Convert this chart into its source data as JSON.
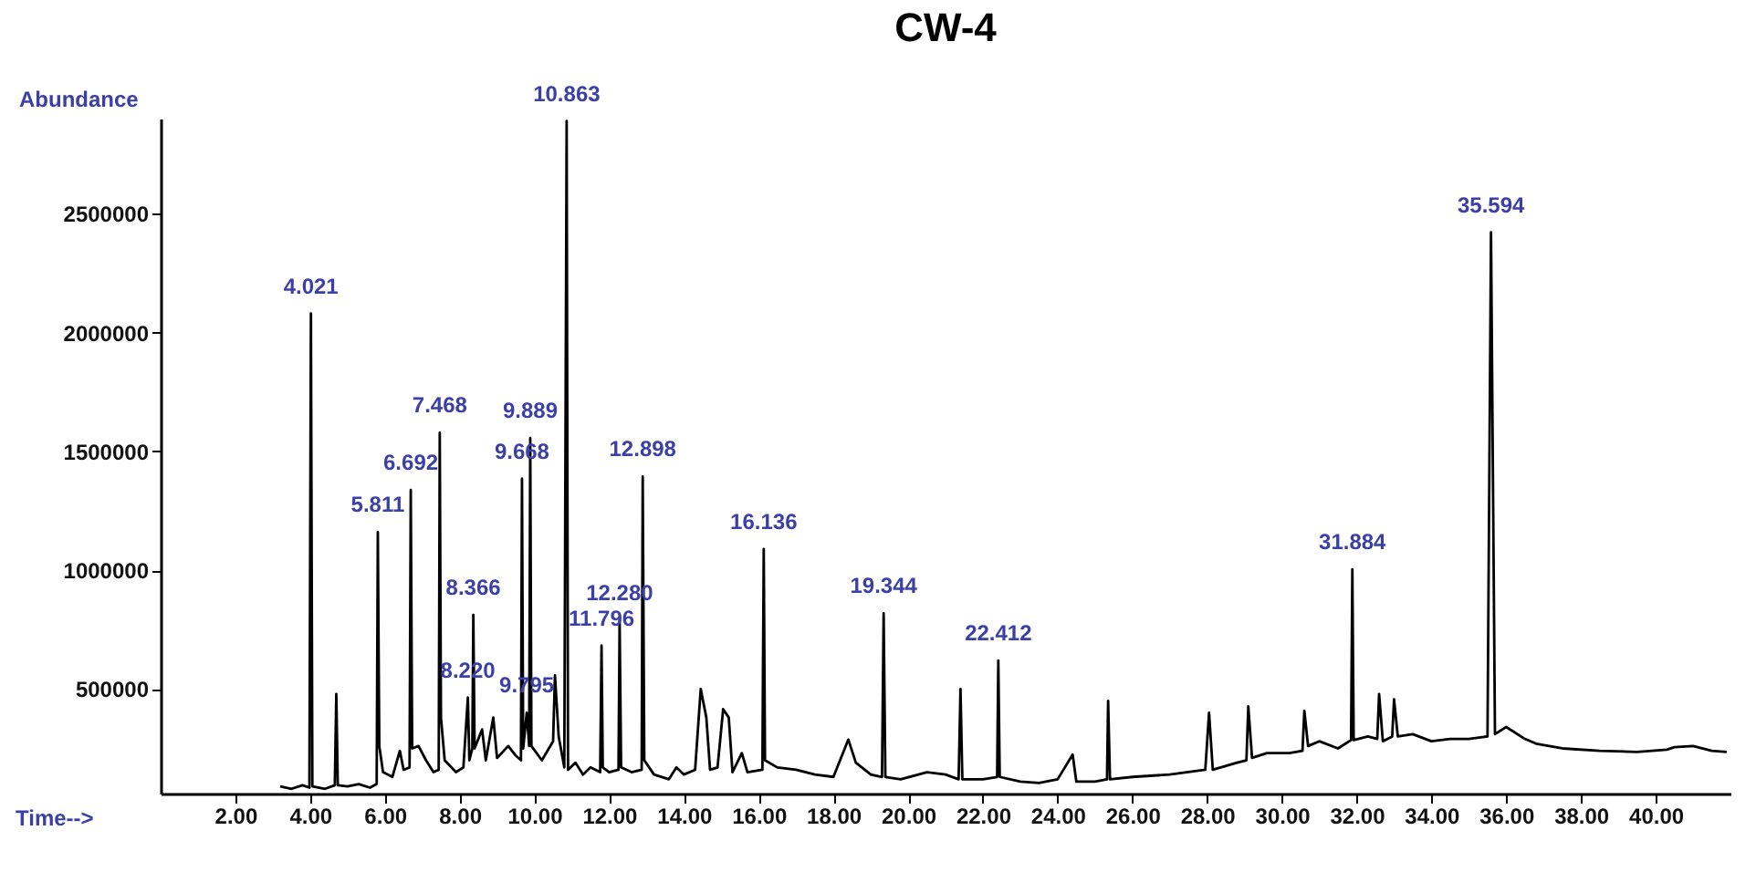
{
  "chart_data": {
    "type": "line",
    "title": "CW-4",
    "xlabel": "Time-->",
    "ylabel": "Abundance",
    "xlim": [
      0,
      42
    ],
    "ylim": [
      60000,
      2900000
    ],
    "xticks": [
      {
        "value": 2,
        "label": "2.00"
      },
      {
        "value": 4,
        "label": "4.00"
      },
      {
        "value": 6,
        "label": "6.00"
      },
      {
        "value": 8,
        "label": "8.00"
      },
      {
        "value": 10,
        "label": "10.00"
      },
      {
        "value": 12,
        "label": "12.00"
      },
      {
        "value": 14,
        "label": "14.00"
      },
      {
        "value": 16,
        "label": "16.00"
      },
      {
        "value": 18,
        "label": "18.00"
      },
      {
        "value": 20,
        "label": "20.00"
      },
      {
        "value": 22,
        "label": "22.00"
      },
      {
        "value": 24,
        "label": "24.00"
      },
      {
        "value": 26,
        "label": "26.00"
      },
      {
        "value": 28,
        "label": "28.00"
      },
      {
        "value": 30,
        "label": "30.00"
      },
      {
        "value": 32,
        "label": "32.00"
      },
      {
        "value": 34,
        "label": "34.00"
      },
      {
        "value": 36,
        "label": "36.00"
      },
      {
        "value": 38,
        "label": "38.00"
      },
      {
        "value": 40,
        "label": "40.00"
      }
    ],
    "yticks": [
      500000,
      1000000,
      1500000,
      2000000,
      2500000
    ],
    "grid": false,
    "legend": false,
    "marker": "none",
    "line_style": "solid",
    "series": [
      {
        "color": "#000000",
        "x": [
          3.2,
          3.5,
          3.8,
          3.98,
          4.021,
          4.06,
          4.4,
          4.66,
          4.7,
          4.74,
          5.0,
          5.3,
          5.6,
          5.78,
          5.811,
          5.85,
          5.95,
          6.2,
          6.4,
          6.5,
          6.66,
          6.692,
          6.73,
          6.9,
          7.1,
          7.3,
          7.44,
          7.468,
          7.5,
          7.6,
          7.9,
          8.1,
          8.22,
          8.26,
          8.34,
          8.366,
          8.4,
          8.6,
          8.7,
          8.9,
          9.0,
          9.3,
          9.5,
          9.64,
          9.668,
          9.7,
          9.795,
          9.86,
          9.889,
          9.92,
          10.2,
          10.5,
          10.55,
          10.65,
          10.8,
          10.863,
          10.9,
          11.1,
          11.3,
          11.5,
          11.76,
          11.796,
          11.83,
          12.0,
          12.25,
          12.28,
          12.32,
          12.6,
          12.87,
          12.898,
          12.94,
          13.2,
          13.6,
          13.8,
          14.0,
          14.3,
          14.45,
          14.6,
          14.7,
          14.9,
          15.05,
          15.2,
          15.3,
          15.55,
          15.7,
          16.1,
          16.136,
          16.17,
          16.5,
          17.0,
          17.5,
          18.0,
          18.4,
          18.6,
          19.0,
          19.3,
          19.344,
          19.39,
          19.8,
          20.5,
          21.0,
          21.35,
          21.4,
          21.45,
          22.0,
          22.38,
          22.412,
          22.45,
          23.0,
          23.5,
          24.0,
          24.4,
          24.5,
          25.0,
          25.32,
          25.35,
          25.4,
          26.0,
          27.0,
          27.95,
          28.05,
          28.15,
          28.8,
          29.05,
          29.1,
          29.2,
          29.6,
          30.2,
          30.55,
          30.6,
          30.7,
          31.0,
          31.5,
          31.85,
          31.884,
          31.92,
          32.3,
          32.55,
          32.6,
          32.7,
          32.95,
          33.0,
          33.1,
          33.5,
          34.0,
          34.5,
          35.0,
          35.5,
          35.594,
          35.7,
          36.0,
          36.5,
          36.8,
          37.5,
          38.5,
          39.5,
          40.3,
          40.5,
          41.0,
          41.5,
          41.9
        ],
        "values": [
          90000,
          80000,
          95000,
          85000,
          2080000,
          90000,
          80000,
          95000,
          479000,
          95000,
          90000,
          100000,
          85000,
          100000,
          1160000,
          260000,
          150000,
          130000,
          240000,
          160000,
          170000,
          1337000,
          250000,
          260000,
          200000,
          150000,
          160000,
          1578000,
          380000,
          200000,
          150000,
          170000,
          464000,
          200000,
          250000,
          812000,
          250000,
          330000,
          200000,
          380000,
          210000,
          260000,
          220000,
          200000,
          1385000,
          250000,
          400000,
          260000,
          1556000,
          260000,
          200000,
          280000,
          557000,
          300000,
          170000,
          2890000,
          160000,
          190000,
          140000,
          170000,
          150000,
          683000,
          170000,
          150000,
          160000,
          791000,
          170000,
          150000,
          160000,
          1394000,
          200000,
          140000,
          120000,
          170000,
          140000,
          160000,
          500000,
          380000,
          160000,
          170000,
          415000,
          380000,
          150000,
          230000,
          150000,
          160000,
          1089000,
          200000,
          170000,
          160000,
          140000,
          130000,
          287000,
          190000,
          140000,
          130000,
          818000,
          130000,
          120000,
          150000,
          140000,
          120000,
          500000,
          120000,
          120000,
          130000,
          620000,
          130000,
          110000,
          105000,
          120000,
          224000,
          110000,
          110000,
          120000,
          450000,
          120000,
          130000,
          140000,
          160000,
          400000,
          160000,
          190000,
          200000,
          427000,
          210000,
          230000,
          230000,
          240000,
          408000,
          260000,
          280000,
          250000,
          285000,
          1004000,
          285000,
          300000,
          290000,
          479000,
          280000,
          300000,
          457000,
          300000,
          310000,
          280000,
          290000,
          290000,
          300000,
          2422000,
          310000,
          340000,
          290000,
          270000,
          250000,
          240000,
          235000,
          245000,
          255000,
          260000,
          240000,
          235000
        ]
      }
    ],
    "annotations": [
      {
        "text": "4.021",
        "x": 4.021,
        "y": 2080000
      },
      {
        "text": "5.811",
        "x": 5.811,
        "y": 1160000
      },
      {
        "text": "6.692",
        "x": 6.692,
        "y": 1337000
      },
      {
        "text": "7.468",
        "x": 7.468,
        "y": 1578000
      },
      {
        "text": "8.220",
        "x": 8.22,
        "y": 464000
      },
      {
        "text": "8.366",
        "x": 8.366,
        "y": 812000
      },
      {
        "text": "9.668",
        "x": 9.668,
        "y": 1385000
      },
      {
        "text": "9.795",
        "x": 9.795,
        "y": 400000
      },
      {
        "text": "9.889",
        "x": 9.889,
        "y": 1556000
      },
      {
        "text": "10.863",
        "x": 10.863,
        "y": 2890000
      },
      {
        "text": "11.796",
        "x": 11.796,
        "y": 683000
      },
      {
        "text": "12.280",
        "x": 12.28,
        "y": 791000
      },
      {
        "text": "12.898",
        "x": 12.898,
        "y": 1394000
      },
      {
        "text": "16.136",
        "x": 16.136,
        "y": 1089000
      },
      {
        "text": "19.344",
        "x": 19.344,
        "y": 818000
      },
      {
        "text": "22.412",
        "x": 22.412,
        "y": 620000
      },
      {
        "text": "31.884",
        "x": 31.884,
        "y": 1004000
      },
      {
        "text": "35.594",
        "x": 35.594,
        "y": 2422000
      }
    ]
  }
}
